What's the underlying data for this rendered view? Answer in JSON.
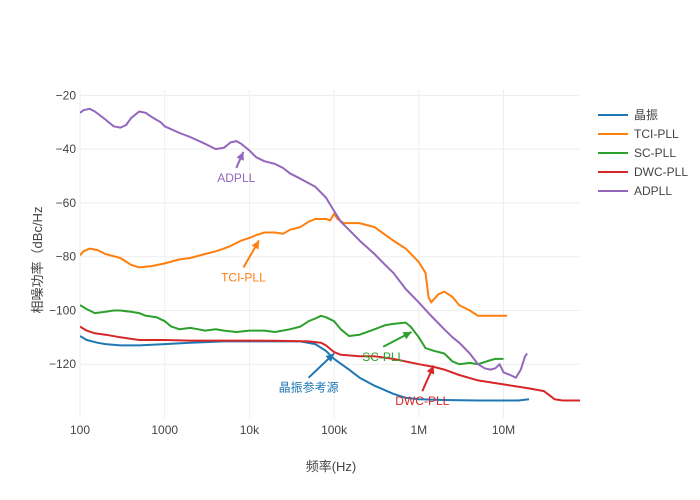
{
  "chart_data": {
    "type": "line",
    "xlabel": "频率(Hz)",
    "ylabel": "相噪功率（dBc/Hz",
    "x_scale": "log",
    "xlim": [
      100,
      80000000
    ],
    "ylim": [
      -140,
      -18
    ],
    "x_ticks": [
      {
        "value": 100,
        "label": "100"
      },
      {
        "value": 1000,
        "label": "1000"
      },
      {
        "value": 10000,
        "label": "10k"
      },
      {
        "value": 100000,
        "label": "100k"
      },
      {
        "value": 1000000,
        "label": "1M"
      },
      {
        "value": 10000000,
        "label": "10M"
      }
    ],
    "y_ticks": [
      {
        "value": -20,
        "label": "−20"
      },
      {
        "value": -40,
        "label": "−40"
      },
      {
        "value": -60,
        "label": "−60"
      },
      {
        "value": -80,
        "label": "−80"
      },
      {
        "value": -100,
        "label": "−100"
      },
      {
        "value": -120,
        "label": "−120"
      }
    ],
    "grid": true,
    "legend_position": "top-right",
    "series": [
      {
        "name": "晶振",
        "color": "#1f77b4",
        "points": [
          [
            100,
            -109.5
          ],
          [
            120,
            -111
          ],
          [
            160,
            -112
          ],
          [
            200,
            -112.5
          ],
          [
            300,
            -113
          ],
          [
            500,
            -113
          ],
          [
            1000,
            -112.5
          ],
          [
            2000,
            -112
          ],
          [
            5000,
            -111.5
          ],
          [
            10000,
            -111.5
          ],
          [
            20000,
            -111.5
          ],
          [
            40000,
            -111.5
          ],
          [
            60000,
            -112.5
          ],
          [
            80000,
            -115
          ],
          [
            100000,
            -118
          ],
          [
            150000,
            -122
          ],
          [
            200000,
            -125
          ],
          [
            300000,
            -128
          ],
          [
            500000,
            -131
          ],
          [
            700000,
            -132.5
          ],
          [
            1000000,
            -133
          ],
          [
            2000000,
            -133.3
          ],
          [
            5000000,
            -133.5
          ],
          [
            10000000,
            -133.5
          ],
          [
            15000000,
            -133.5
          ],
          [
            20000000,
            -133
          ]
        ]
      },
      {
        "name": "TCI-PLL",
        "color": "#ff7f0e",
        "points": [
          [
            100,
            -79.5
          ],
          [
            110,
            -78
          ],
          [
            130,
            -77
          ],
          [
            160,
            -77.5
          ],
          [
            200,
            -79
          ],
          [
            300,
            -80.5
          ],
          [
            400,
            -83
          ],
          [
            500,
            -84
          ],
          [
            700,
            -83.5
          ],
          [
            1000,
            -82.5
          ],
          [
            1500,
            -81
          ],
          [
            2000,
            -80.5
          ],
          [
            3000,
            -79
          ],
          [
            4000,
            -78
          ],
          [
            5000,
            -77
          ],
          [
            6000,
            -76
          ],
          [
            8000,
            -74
          ],
          [
            10000,
            -73
          ],
          [
            12000,
            -72
          ],
          [
            15000,
            -71
          ],
          [
            20000,
            -71
          ],
          [
            25000,
            -71.5
          ],
          [
            30000,
            -70
          ],
          [
            40000,
            -69
          ],
          [
            50000,
            -67
          ],
          [
            60000,
            -66
          ],
          [
            80000,
            -66
          ],
          [
            90000,
            -66.5
          ],
          [
            100000,
            -64
          ],
          [
            110000,
            -66
          ],
          [
            130000,
            -67.5
          ],
          [
            200000,
            -67.5
          ],
          [
            300000,
            -69
          ],
          [
            500000,
            -74
          ],
          [
            700000,
            -77
          ],
          [
            1000000,
            -82
          ],
          [
            1200000,
            -86
          ],
          [
            1300000,
            -95
          ],
          [
            1400000,
            -97
          ],
          [
            1700000,
            -94
          ],
          [
            2000000,
            -93
          ],
          [
            2500000,
            -95
          ],
          [
            3000000,
            -98
          ],
          [
            4000000,
            -100
          ],
          [
            5000000,
            -102
          ],
          [
            7000000,
            -102
          ],
          [
            10000000,
            -102
          ],
          [
            11000000,
            -102
          ]
        ]
      },
      {
        "name": "SC-PLL",
        "color": "#2ca02c",
        "points": [
          [
            100,
            -98
          ],
          [
            120,
            -99.5
          ],
          [
            150,
            -101
          ],
          [
            200,
            -100.5
          ],
          [
            250,
            -100
          ],
          [
            300,
            -100
          ],
          [
            400,
            -100.5
          ],
          [
            500,
            -101
          ],
          [
            600,
            -102
          ],
          [
            800,
            -102.5
          ],
          [
            1000,
            -104
          ],
          [
            1200,
            -106
          ],
          [
            1500,
            -107
          ],
          [
            2000,
            -106.5
          ],
          [
            2500,
            -107
          ],
          [
            3000,
            -107.5
          ],
          [
            4000,
            -107
          ],
          [
            5000,
            -107.5
          ],
          [
            7000,
            -108
          ],
          [
            10000,
            -107.5
          ],
          [
            15000,
            -107.5
          ],
          [
            20000,
            -108
          ],
          [
            30000,
            -107
          ],
          [
            40000,
            -106
          ],
          [
            50000,
            -104
          ],
          [
            60000,
            -103
          ],
          [
            70000,
            -102
          ],
          [
            80000,
            -102.5
          ],
          [
            100000,
            -104
          ],
          [
            120000,
            -107
          ],
          [
            150000,
            -109.5
          ],
          [
            200000,
            -109
          ],
          [
            300000,
            -107
          ],
          [
            400000,
            -105.5
          ],
          [
            500000,
            -105
          ],
          [
            700000,
            -104.5
          ],
          [
            800000,
            -106
          ],
          [
            1000000,
            -110
          ],
          [
            1200000,
            -114
          ],
          [
            1500000,
            -115
          ],
          [
            2000000,
            -116
          ],
          [
            2500000,
            -119
          ],
          [
            3000000,
            -120
          ],
          [
            4000000,
            -119.5
          ],
          [
            5000000,
            -120
          ],
          [
            7000000,
            -118.5
          ],
          [
            8000000,
            -118
          ],
          [
            10000000,
            -118
          ]
        ]
      },
      {
        "name": "DWC-PLL",
        "color": "#d62728",
        "points": [
          [
            100,
            -106
          ],
          [
            120,
            -107.5
          ],
          [
            150,
            -108.5
          ],
          [
            200,
            -109
          ],
          [
            300,
            -110
          ],
          [
            500,
            -111
          ],
          [
            1000,
            -111
          ],
          [
            2000,
            -111.2
          ],
          [
            5000,
            -111.2
          ],
          [
            10000,
            -111.2
          ],
          [
            20000,
            -111.3
          ],
          [
            50000,
            -111.5
          ],
          [
            70000,
            -112
          ],
          [
            80000,
            -113
          ],
          [
            100000,
            -115.5
          ],
          [
            120000,
            -116.5
          ],
          [
            200000,
            -117
          ],
          [
            300000,
            -117
          ],
          [
            500000,
            -118
          ],
          [
            1000000,
            -120
          ],
          [
            1500000,
            -121
          ],
          [
            2000000,
            -122
          ],
          [
            3000000,
            -124
          ],
          [
            5000000,
            -126
          ],
          [
            10000000,
            -127.5
          ],
          [
            20000000,
            -129
          ],
          [
            30000000,
            -130
          ],
          [
            40000000,
            -133
          ],
          [
            50000000,
            -133.5
          ],
          [
            80000000,
            -133.5
          ]
        ]
      },
      {
        "name": "ADPLL",
        "color": "#9467bd",
        "points": [
          [
            100,
            -26.5
          ],
          [
            110,
            -25.5
          ],
          [
            130,
            -25
          ],
          [
            150,
            -26
          ],
          [
            200,
            -29
          ],
          [
            250,
            -31.5
          ],
          [
            300,
            -32
          ],
          [
            350,
            -31
          ],
          [
            400,
            -28.5
          ],
          [
            500,
            -26
          ],
          [
            600,
            -26.5
          ],
          [
            700,
            -28
          ],
          [
            900,
            -30
          ],
          [
            1000,
            -31.5
          ],
          [
            1500,
            -34
          ],
          [
            2000,
            -35.5
          ],
          [
            3000,
            -38
          ],
          [
            4000,
            -40
          ],
          [
            5000,
            -39.5
          ],
          [
            6000,
            -37.5
          ],
          [
            7000,
            -37
          ],
          [
            8000,
            -38
          ],
          [
            10000,
            -40.5
          ],
          [
            12000,
            -43
          ],
          [
            15000,
            -44.5
          ],
          [
            20000,
            -45.5
          ],
          [
            25000,
            -47
          ],
          [
            30000,
            -49
          ],
          [
            40000,
            -51
          ],
          [
            60000,
            -54
          ],
          [
            80000,
            -58
          ],
          [
            100000,
            -63
          ],
          [
            120000,
            -67
          ],
          [
            150000,
            -70
          ],
          [
            200000,
            -74
          ],
          [
            300000,
            -79
          ],
          [
            400000,
            -83
          ],
          [
            500000,
            -86
          ],
          [
            700000,
            -92
          ],
          [
            1000000,
            -97
          ],
          [
            1300000,
            -101
          ],
          [
            1500000,
            -103
          ],
          [
            2000000,
            -107
          ],
          [
            2500000,
            -110
          ],
          [
            3000000,
            -112
          ],
          [
            4000000,
            -116
          ],
          [
            5000000,
            -120
          ],
          [
            6000000,
            -121.5
          ],
          [
            7000000,
            -122
          ],
          [
            8000000,
            -121.5
          ],
          [
            9000000,
            -120
          ],
          [
            10000000,
            -123
          ],
          [
            12000000,
            -124
          ],
          [
            14000000,
            -125
          ],
          [
            16000000,
            -122
          ],
          [
            18000000,
            -117
          ],
          [
            19000000,
            -116
          ]
        ]
      }
    ],
    "annotations": [
      {
        "text": "ADPLL",
        "color": "#9467bd",
        "tail": [
          7000,
          -47
        ],
        "head": [
          8500,
          -41
        ]
      },
      {
        "text": "TCI-PLL",
        "color": "#ff7f0e",
        "tail": [
          8500,
          -84
        ],
        "head": [
          13000,
          -74
        ]
      },
      {
        "text": "SC-PLL",
        "color": "#2ca02c",
        "tail": [
          380000,
          -113.5
        ],
        "head": [
          820000,
          -108
        ]
      },
      {
        "text": "晶振参考源",
        "color": "#1f77b4",
        "tail": [
          50000,
          -125
        ],
        "head": [
          100000,
          -116
        ]
      },
      {
        "text": "DWC-PLL",
        "color": "#d62728",
        "tail": [
          1100000,
          -130
        ],
        "head": [
          1500000,
          -120.5
        ]
      }
    ]
  }
}
